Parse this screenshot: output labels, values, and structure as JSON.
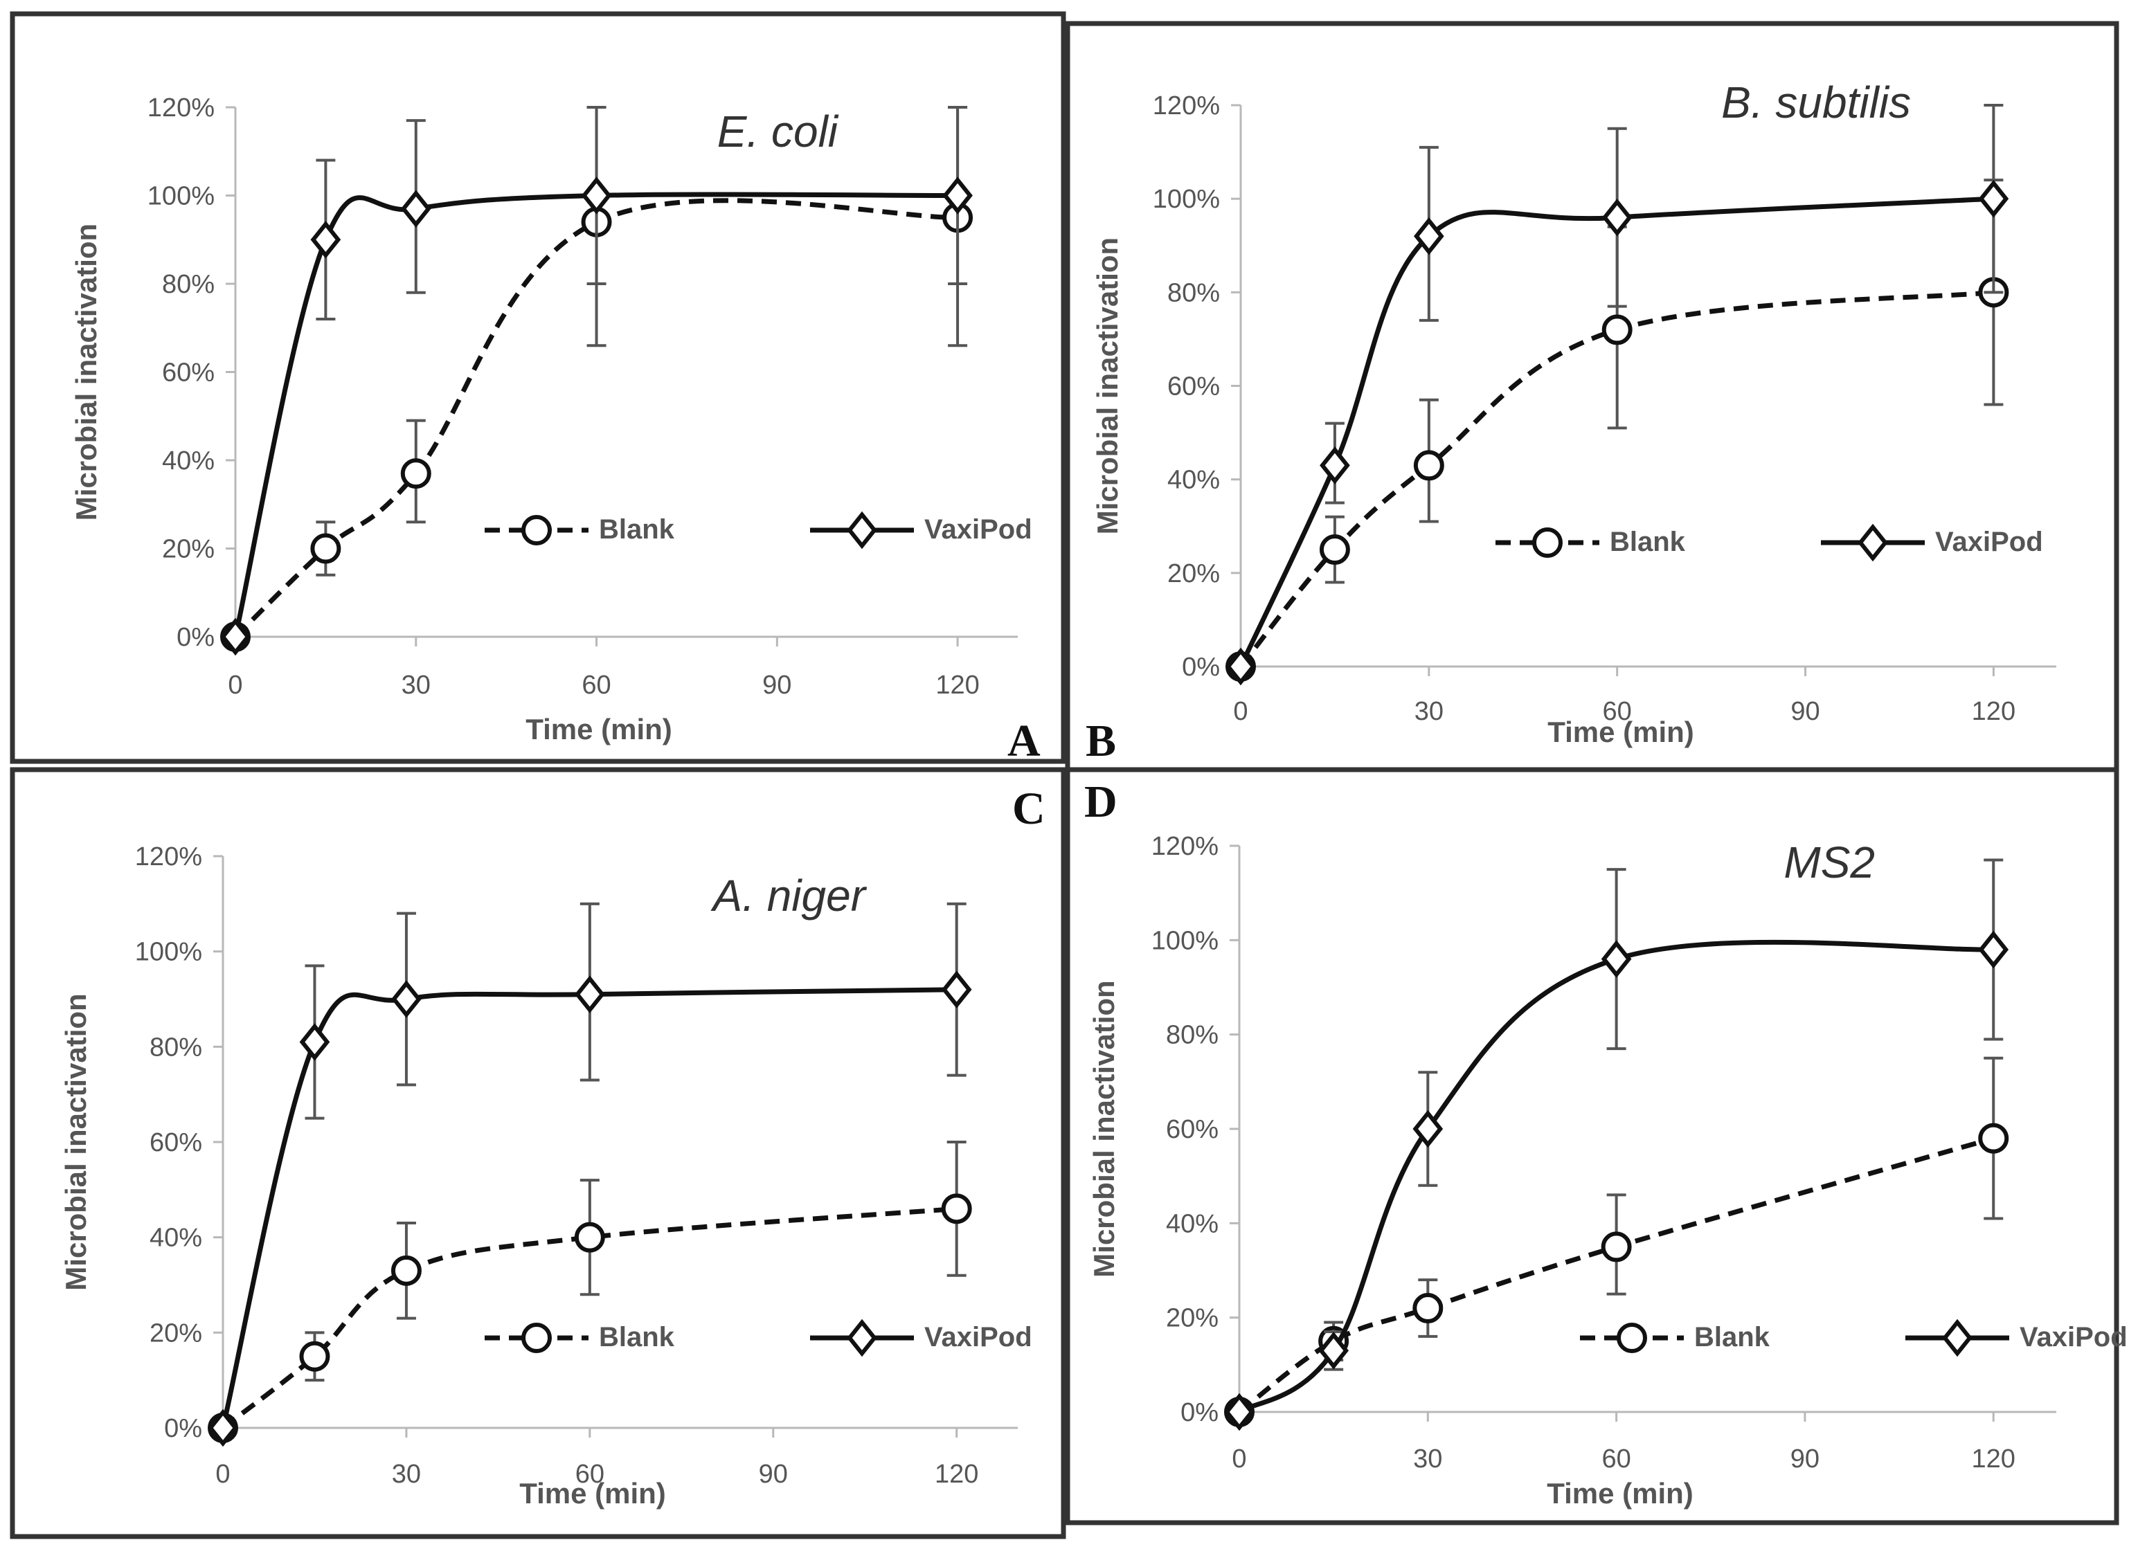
{
  "figure": {
    "labels": {
      "A": "A",
      "B": "B",
      "C": "C",
      "D": "D"
    }
  },
  "chart_data": [
    {
      "panel": "A",
      "type": "line",
      "title": "E. coli",
      "xlabel": "Time (min)",
      "ylabel": "Microbial inactivation",
      "x_ticks": [
        "0",
        "30",
        "60",
        "90",
        "120"
      ],
      "y_ticks": [
        "0%",
        "20%",
        "40%",
        "60%",
        "80%",
        "100%",
        "120%"
      ],
      "xlim": [
        0,
        130
      ],
      "ylim": [
        0,
        120
      ],
      "legend": "lower-right",
      "series": [
        {
          "name": "Blank",
          "style": "dashed",
          "marker": "circle",
          "x": [
            0,
            15,
            30,
            60,
            120
          ],
          "y": [
            0,
            20,
            37,
            94,
            95
          ],
          "err_low": [
            0,
            14,
            26,
            66,
            66
          ],
          "err_high": [
            0,
            26,
            49,
            120,
            120
          ]
        },
        {
          "name": "VaxiPod",
          "style": "solid",
          "marker": "diamond",
          "x": [
            0,
            15,
            30,
            60,
            120
          ],
          "y": [
            0,
            90,
            97,
            100,
            100
          ],
          "err_low": [
            0,
            72,
            78,
            80,
            80
          ],
          "err_high": [
            0,
            108,
            117,
            120,
            120
          ]
        }
      ]
    },
    {
      "panel": "B",
      "type": "line",
      "title": "B. subtilis",
      "xlabel": "Time (min)",
      "ylabel": "Microbial inactivation",
      "x_ticks": [
        "0",
        "30",
        "60",
        "90",
        "120"
      ],
      "y_ticks": [
        "0%",
        "20%",
        "40%",
        "60%",
        "80%",
        "100%",
        "120%"
      ],
      "xlim": [
        0,
        130
      ],
      "ylim": [
        0,
        120
      ],
      "legend": "lower-right",
      "series": [
        {
          "name": "Blank",
          "style": "dashed",
          "marker": "circle",
          "x": [
            0,
            15,
            30,
            60,
            120
          ],
          "y": [
            0,
            25,
            43,
            72,
            80
          ],
          "err_low": [
            0,
            18,
            31,
            51,
            56
          ],
          "err_high": [
            0,
            32,
            57,
            94,
            104
          ]
        },
        {
          "name": "VaxiPod",
          "style": "solid",
          "marker": "diamond",
          "x": [
            0,
            15,
            30,
            60,
            120
          ],
          "y": [
            0,
            43,
            92,
            96,
            100
          ],
          "err_low": [
            0,
            35,
            74,
            77,
            80
          ],
          "err_high": [
            0,
            52,
            111,
            115,
            120
          ]
        }
      ]
    },
    {
      "panel": "C",
      "type": "line",
      "title": "A. niger",
      "xlabel": "Time (min)",
      "ylabel": "Microbial inactivation",
      "x_ticks": [
        "0",
        "30",
        "60",
        "90",
        "120"
      ],
      "y_ticks": [
        "0%",
        "20%",
        "40%",
        "60%",
        "80%",
        "100%",
        "120%"
      ],
      "xlim": [
        0,
        130
      ],
      "ylim": [
        0,
        120
      ],
      "legend": "lower-right",
      "series": [
        {
          "name": "Blank",
          "style": "dashed",
          "marker": "circle",
          "x": [
            0,
            15,
            30,
            60,
            120
          ],
          "y": [
            0,
            15,
            33,
            40,
            46
          ],
          "err_low": [
            0,
            10,
            23,
            28,
            32
          ],
          "err_high": [
            0,
            20,
            43,
            52,
            60
          ]
        },
        {
          "name": "VaxiPod",
          "style": "solid",
          "marker": "diamond",
          "x": [
            0,
            15,
            30,
            60,
            120
          ],
          "y": [
            0,
            81,
            90,
            91,
            92
          ],
          "err_low": [
            0,
            65,
            72,
            73,
            74
          ],
          "err_high": [
            0,
            97,
            108,
            110,
            110
          ]
        }
      ]
    },
    {
      "panel": "D",
      "type": "line",
      "title": "MS2",
      "xlabel": "Time (min)",
      "ylabel": "Microbial inactivation",
      "x_ticks": [
        "0",
        "30",
        "60",
        "90",
        "120"
      ],
      "y_ticks": [
        "0%",
        "20%",
        "40%",
        "60%",
        "80%",
        "100%",
        "120%"
      ],
      "xlim": [
        0,
        130
      ],
      "ylim": [
        0,
        120
      ],
      "legend": "lower-right",
      "series": [
        {
          "name": "Blank",
          "style": "dashed",
          "marker": "circle",
          "x": [
            0,
            15,
            30,
            60,
            120
          ],
          "y": [
            0,
            15,
            22,
            35,
            58
          ],
          "err_low": [
            0,
            11,
            16,
            25,
            41
          ],
          "err_high": [
            0,
            19,
            28,
            46,
            75
          ]
        },
        {
          "name": "VaxiPod",
          "style": "solid",
          "marker": "diamond",
          "x": [
            0,
            15,
            30,
            60,
            120
          ],
          "y": [
            0,
            13,
            60,
            96,
            98
          ],
          "err_low": [
            0,
            9,
            48,
            77,
            79
          ],
          "err_high": [
            0,
            17,
            72,
            115,
            117
          ]
        }
      ]
    }
  ]
}
